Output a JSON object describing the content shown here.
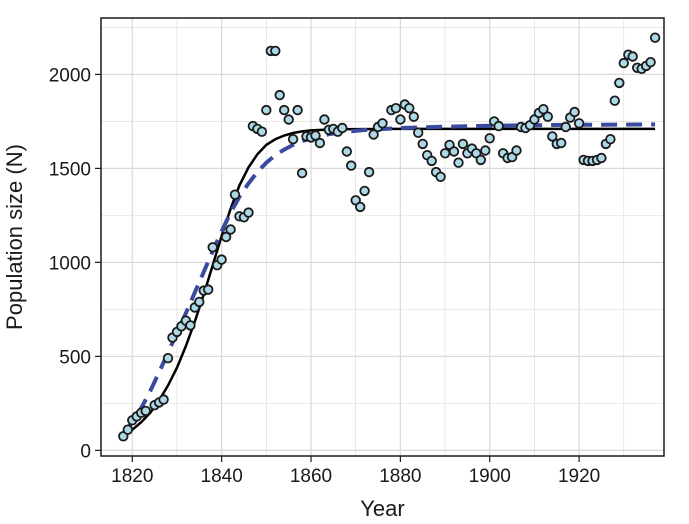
{
  "chart_data": {
    "type": "scatter",
    "title": "",
    "xlabel": "Year",
    "ylabel": "Population size (N)",
    "xlim": [
      1813,
      1939
    ],
    "ylim": [
      -30,
      2300
    ],
    "xticks": [
      1820,
      1840,
      1860,
      1880,
      1900,
      1920
    ],
    "yticks": [
      0,
      500,
      1000,
      1500,
      2000
    ],
    "grid": true,
    "legend": "none",
    "colors": {
      "points_fill": "#add8e6",
      "points_stroke": "#1a1a1a",
      "solid_line": "#000000",
      "dashed_line": "#3a4aa0",
      "grid": "#d9d9d9"
    },
    "series": [
      {
        "type": "scatter",
        "points": [
          [
            1818,
            75
          ],
          [
            1819,
            110
          ],
          [
            1820,
            160
          ],
          [
            1821,
            180
          ],
          [
            1822,
            200
          ],
          [
            1823,
            210
          ],
          [
            1825,
            240
          ],
          [
            1826,
            255
          ],
          [
            1827,
            270
          ],
          [
            1828,
            490
          ],
          [
            1829,
            600
          ],
          [
            1830,
            630
          ],
          [
            1831,
            660
          ],
          [
            1832,
            690
          ],
          [
            1833,
            665
          ],
          [
            1834,
            760
          ],
          [
            1835,
            790
          ],
          [
            1836,
            850
          ],
          [
            1837,
            855
          ],
          [
            1838,
            1080
          ],
          [
            1839,
            985
          ],
          [
            1840,
            1015
          ],
          [
            1841,
            1135
          ],
          [
            1842,
            1175
          ],
          [
            1843,
            1360
          ],
          [
            1844,
            1245
          ],
          [
            1845,
            1240
          ],
          [
            1846,
            1265
          ],
          [
            1847,
            1725
          ],
          [
            1848,
            1710
          ],
          [
            1849,
            1695
          ],
          [
            1850,
            1810
          ],
          [
            1851,
            2125
          ],
          [
            1852,
            2125
          ],
          [
            1853,
            1890
          ],
          [
            1854,
            1810
          ],
          [
            1855,
            1760
          ],
          [
            1856,
            1655
          ],
          [
            1857,
            1810
          ],
          [
            1858,
            1475
          ],
          [
            1859,
            1670
          ],
          [
            1860,
            1665
          ],
          [
            1861,
            1675
          ],
          [
            1862,
            1635
          ],
          [
            1863,
            1760
          ],
          [
            1864,
            1705
          ],
          [
            1865,
            1710
          ],
          [
            1866,
            1695
          ],
          [
            1867,
            1715
          ],
          [
            1868,
            1590
          ],
          [
            1869,
            1515
          ],
          [
            1870,
            1330
          ],
          [
            1871,
            1295
          ],
          [
            1872,
            1380
          ],
          [
            1873,
            1480
          ],
          [
            1874,
            1680
          ],
          [
            1875,
            1720
          ],
          [
            1876,
            1740
          ],
          [
            1878,
            1810
          ],
          [
            1879,
            1820
          ],
          [
            1880,
            1760
          ],
          [
            1881,
            1840
          ],
          [
            1882,
            1820
          ],
          [
            1883,
            1775
          ],
          [
            1884,
            1690
          ],
          [
            1885,
            1630
          ],
          [
            1886,
            1570
          ],
          [
            1887,
            1540
          ],
          [
            1888,
            1480
          ],
          [
            1889,
            1455
          ],
          [
            1890,
            1580
          ],
          [
            1891,
            1625
          ],
          [
            1892,
            1590
          ],
          [
            1893,
            1530
          ],
          [
            1894,
            1630
          ],
          [
            1895,
            1580
          ],
          [
            1896,
            1605
          ],
          [
            1897,
            1580
          ],
          [
            1898,
            1545
          ],
          [
            1899,
            1595
          ],
          [
            1900,
            1660
          ],
          [
            1901,
            1750
          ],
          [
            1902,
            1725
          ],
          [
            1903,
            1580
          ],
          [
            1904,
            1555
          ],
          [
            1905,
            1560
          ],
          [
            1906,
            1595
          ],
          [
            1907,
            1720
          ],
          [
            1908,
            1715
          ],
          [
            1909,
            1730
          ],
          [
            1910,
            1760
          ],
          [
            1911,
            1795
          ],
          [
            1912,
            1815
          ],
          [
            1913,
            1775
          ],
          [
            1914,
            1670
          ],
          [
            1915,
            1630
          ],
          [
            1916,
            1635
          ],
          [
            1917,
            1720
          ],
          [
            1918,
            1770
          ],
          [
            1919,
            1800
          ],
          [
            1920,
            1740
          ],
          [
            1921,
            1545
          ],
          [
            1922,
            1540
          ],
          [
            1923,
            1540
          ],
          [
            1924,
            1545
          ],
          [
            1925,
            1555
          ],
          [
            1926,
            1630
          ],
          [
            1927,
            1655
          ],
          [
            1928,
            1860
          ],
          [
            1929,
            1955
          ],
          [
            1930,
            2060
          ],
          [
            1931,
            2105
          ],
          [
            1932,
            2095
          ],
          [
            1933,
            2035
          ],
          [
            1934,
            2030
          ],
          [
            1935,
            2045
          ],
          [
            1936,
            2065
          ],
          [
            1937,
            2195
          ]
        ]
      },
      {
        "type": "line",
        "style": "solid",
        "x": [
          1818,
          1820,
          1822,
          1824,
          1826,
          1828,
          1830,
          1832,
          1834,
          1836,
          1838,
          1840,
          1842,
          1844,
          1846,
          1848,
          1850,
          1852,
          1854,
          1856,
          1858,
          1860,
          1863,
          1866,
          1870,
          1880,
          1890,
          1900,
          1910,
          1920,
          1930,
          1937
        ],
        "y": [
          80,
          110,
          150,
          200,
          265,
          345,
          440,
          555,
          685,
          830,
          985,
          1140,
          1285,
          1410,
          1505,
          1575,
          1625,
          1655,
          1675,
          1688,
          1697,
          1702,
          1706,
          1708,
          1709,
          1710,
          1710,
          1710,
          1710,
          1710,
          1710,
          1710
        ]
      },
      {
        "type": "line",
        "style": "dashed",
        "x": [
          1818,
          1820,
          1822,
          1824,
          1826,
          1828,
          1830,
          1832,
          1834,
          1836,
          1838,
          1840,
          1842,
          1844,
          1846,
          1848,
          1850,
          1852,
          1854,
          1856,
          1858,
          1860,
          1864,
          1868,
          1872,
          1880,
          1890,
          1900,
          1910,
          1920,
          1930,
          1937
        ],
        "y": [
          90,
          150,
          225,
          315,
          415,
          520,
          625,
          730,
          840,
          950,
          1060,
          1165,
          1265,
          1350,
          1420,
          1480,
          1530,
          1570,
          1600,
          1625,
          1645,
          1660,
          1682,
          1695,
          1704,
          1715,
          1722,
          1727,
          1730,
          1732,
          1733,
          1734
        ]
      }
    ]
  }
}
